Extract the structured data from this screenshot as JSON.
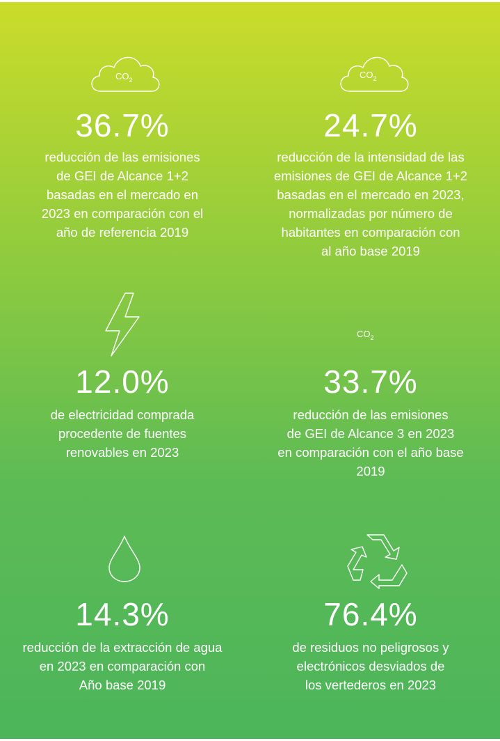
{
  "co2_labels": [
    {
      "text": "CO",
      "sub": "2"
    },
    {
      "text": "CO",
      "sub": "2"
    },
    {
      "text": "CO",
      "sub": "2"
    }
  ],
  "items": [
    {
      "value": "36.7%",
      "lines": [
        "reducción de las emisiones",
        "de GEI de Alcance 1+2",
        "basadas en el mercado en",
        "2023 en comparación con el",
        "año de referencia 2019"
      ]
    },
    {
      "value": "24.7%",
      "lines": [
        "reducción de la intensidad de las",
        "emisiones de GEI de Alcance 1+2",
        "basadas en el mercado en 2023,",
        "normalizadas por número de",
        "habitantes en comparación con",
        "al año base 2019"
      ]
    },
    {
      "value": "12.0%",
      "lines": [
        "de electricidad comprada",
        "procedente de fuentes",
        "renovables en 2023"
      ]
    },
    {
      "value": "33.7%",
      "lines": [
        "reducción de las emisiones",
        "de GEI de Alcance 3 en 2023",
        "en comparación con el año base",
        "2019"
      ]
    },
    {
      "value": "14.3%",
      "lines": [
        "reducción de la extracción de agua",
        "en 2023 en comparación con",
        "Año base 2019"
      ]
    },
    {
      "value": "76.4%",
      "lines": [
        "de residuos no peligrosos y",
        "electrónicos desviados de",
        "los vertederos en 2023"
      ]
    }
  ]
}
